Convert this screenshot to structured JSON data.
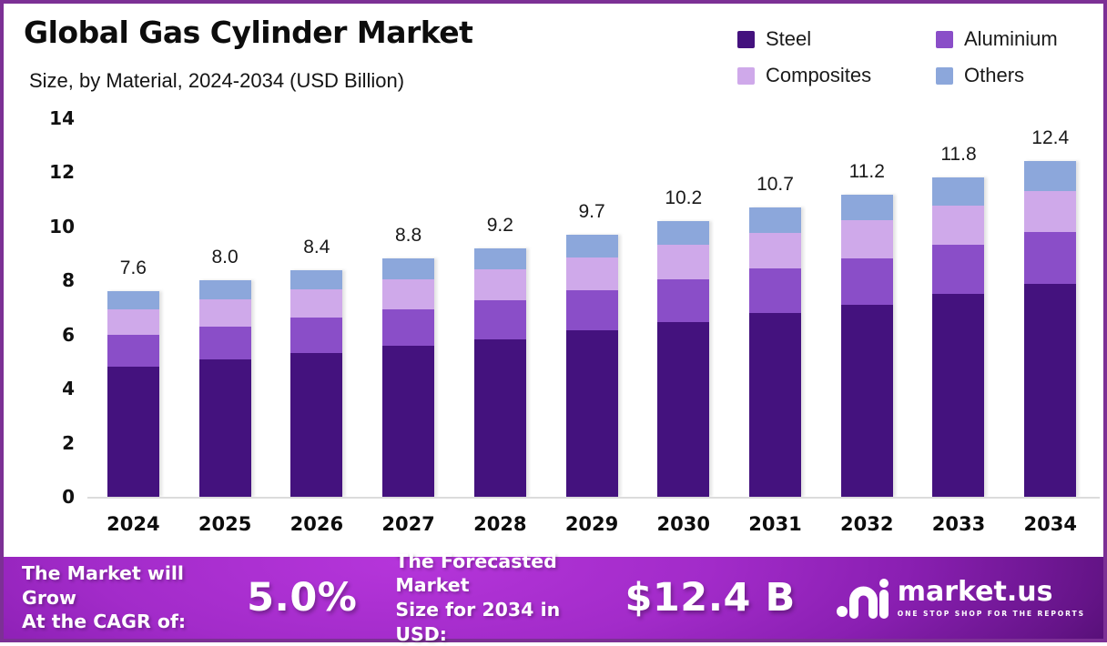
{
  "header": {
    "title": "Global Gas Cylinder Market",
    "subtitle": "Size, by Material, 2024-2034 (USD Billion)"
  },
  "chart_data": {
    "type": "bar",
    "stacked": true,
    "title": "Global Gas Cylinder Market",
    "subtitle": "Size, by Material, 2024-2034 (USD Billion)",
    "categories": [
      "2024",
      "2025",
      "2026",
      "2027",
      "2028",
      "2029",
      "2030",
      "2031",
      "2032",
      "2033",
      "2034"
    ],
    "totals": [
      7.6,
      8.0,
      8.4,
      8.8,
      9.2,
      9.7,
      10.2,
      10.7,
      11.2,
      11.8,
      12.4
    ],
    "total_labels": [
      "7.6",
      "8.0",
      "8.4",
      "8.8",
      "9.2",
      "9.7",
      "10.2",
      "10.7",
      "11.2",
      "11.8",
      "12.4"
    ],
    "series": [
      {
        "name": "Steel",
        "color": "#44127e",
        "values": [
          4.83,
          5.08,
          5.33,
          5.59,
          5.84,
          6.16,
          6.48,
          6.79,
          7.11,
          7.49,
          7.87
        ]
      },
      {
        "name": "Aluminium",
        "color": "#8a4ec8",
        "values": [
          1.17,
          1.23,
          1.29,
          1.36,
          1.42,
          1.49,
          1.57,
          1.65,
          1.72,
          1.82,
          1.91
        ]
      },
      {
        "name": "Composites",
        "color": "#cfa9ea",
        "values": [
          0.94,
          0.99,
          1.04,
          1.09,
          1.14,
          1.2,
          1.26,
          1.33,
          1.39,
          1.46,
          1.54
        ]
      },
      {
        "name": "Others",
        "color": "#8ca7db",
        "values": [
          0.66,
          0.7,
          0.73,
          0.77,
          0.8,
          0.84,
          0.89,
          0.93,
          0.97,
          1.03,
          1.08
        ]
      }
    ],
    "ylim": [
      0,
      14
    ],
    "yticks": [
      0,
      2,
      4,
      6,
      8,
      10,
      12,
      14
    ],
    "xlabel": "",
    "ylabel": "",
    "grid": false,
    "legend_position": "top-right"
  },
  "footer": {
    "cagr_label_line1": "The Market will Grow",
    "cagr_label_line2": "At the CAGR of:",
    "cagr_value": "5.0%",
    "forecast_label_line1": "The Forecasted Market",
    "forecast_label_line2": "Size for 2034 in USD:",
    "forecast_value": "$12.4 B",
    "brand_name": "market.us",
    "brand_tagline": "ONE STOP SHOP FOR THE REPORTS"
  },
  "colors": {
    "page_border": "#7c3095",
    "axis_line": "#dcdcdc",
    "footer_bright": "#b535da",
    "footer_dark": "#470b66",
    "text_dark": "#0d0d0d",
    "text_light": "#ffffff"
  }
}
